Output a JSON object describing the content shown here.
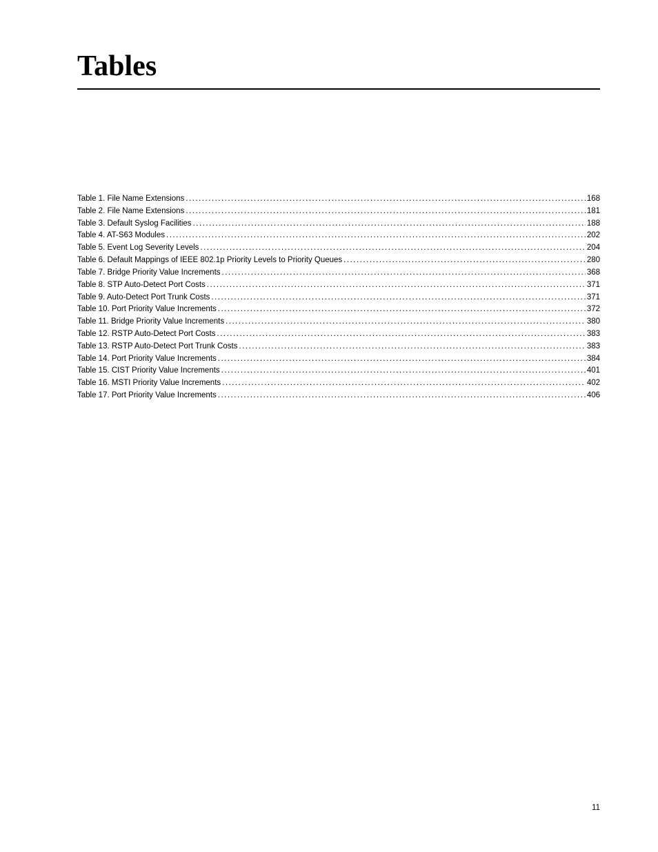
{
  "title": "Tables",
  "entries": [
    {
      "label": "Table 1. File Name Extensions ",
      "page": "168"
    },
    {
      "label": "Table 2. File Name Extensions ",
      "page": "181"
    },
    {
      "label": "Table 3. Default Syslog Facilities ",
      "page": "188"
    },
    {
      "label": "Table 4. AT-S63 Modules ",
      "page": "202"
    },
    {
      "label": "Table 5. Event Log Severity Levels ",
      "page": "204"
    },
    {
      "label": "Table 6. Default Mappings of IEEE 802.1p Priority Levels to Priority Queues ",
      "page": "280"
    },
    {
      "label": "Table 7. Bridge Priority Value Increments ",
      "page": "368"
    },
    {
      "label": "Table 8. STP Auto-Detect Port Costs ",
      "page": "371"
    },
    {
      "label": "Table 9. Auto-Detect Port Trunk Costs ",
      "page": "371"
    },
    {
      "label": "Table 10. Port Priority Value Increments ",
      "page": "372"
    },
    {
      "label": "Table 11. Bridge Priority Value Increments ",
      "page": "380"
    },
    {
      "label": "Table 12. RSTP Auto-Detect Port Costs ",
      "page": "383"
    },
    {
      "label": "Table 13. RSTP Auto-Detect Port Trunk Costs ",
      "page": "383"
    },
    {
      "label": "Table 14. Port Priority Value Increments ",
      "page": "384"
    },
    {
      "label": "Table 15. CIST Priority Value Increments ",
      "page": "401"
    },
    {
      "label": "Table 16. MSTI Priority Value Increments ",
      "page": "402"
    },
    {
      "label": "Table 17. Port Priority Value Increments ",
      "page": "406"
    }
  ],
  "pageNumber": "11"
}
